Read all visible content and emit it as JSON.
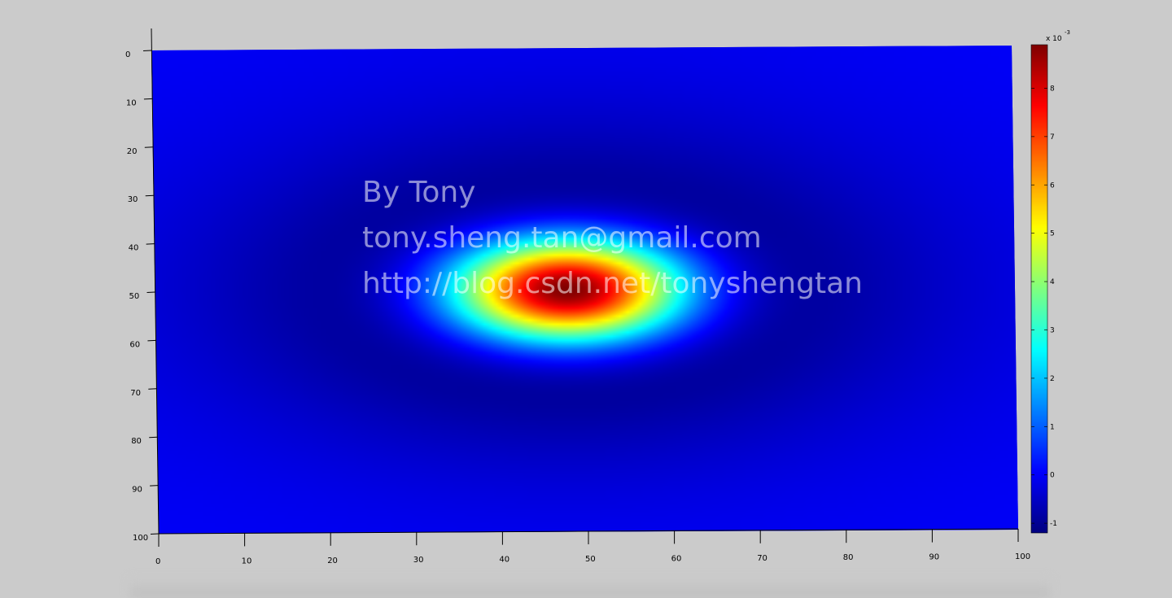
{
  "chart_data": {
    "type": "heatmap",
    "title": "",
    "xlabel": "",
    "ylabel": "",
    "x_ticks": [
      0,
      10,
      20,
      30,
      40,
      50,
      60,
      70,
      80,
      90,
      100
    ],
    "y_ticks": [
      0,
      10,
      20,
      30,
      40,
      50,
      60,
      70,
      80,
      90,
      100
    ],
    "xlim": [
      0,
      100
    ],
    "ylim": [
      0,
      100
    ],
    "y_direction": "reversed",
    "colormap": "jet",
    "colorbar": {
      "exponent_label": "x 10",
      "exponent_power": "-3",
      "ticks": [
        -1,
        0,
        1,
        2,
        3,
        4,
        5,
        6,
        7,
        8
      ],
      "clim": [
        -1.2,
        8.9
      ]
    },
    "surface": {
      "function": "difference-of-gaussians blob",
      "peak_value": 8.9,
      "min_value": -1.2,
      "peak_at": [
        48,
        50
      ],
      "units_scale": "x 10^-3"
    },
    "grid": false,
    "legend": "none",
    "watermark": [
      "By Tony",
      "tony.sheng.tan@gmail.com",
      "http://blog.csdn.net/tonyshengtan"
    ]
  }
}
